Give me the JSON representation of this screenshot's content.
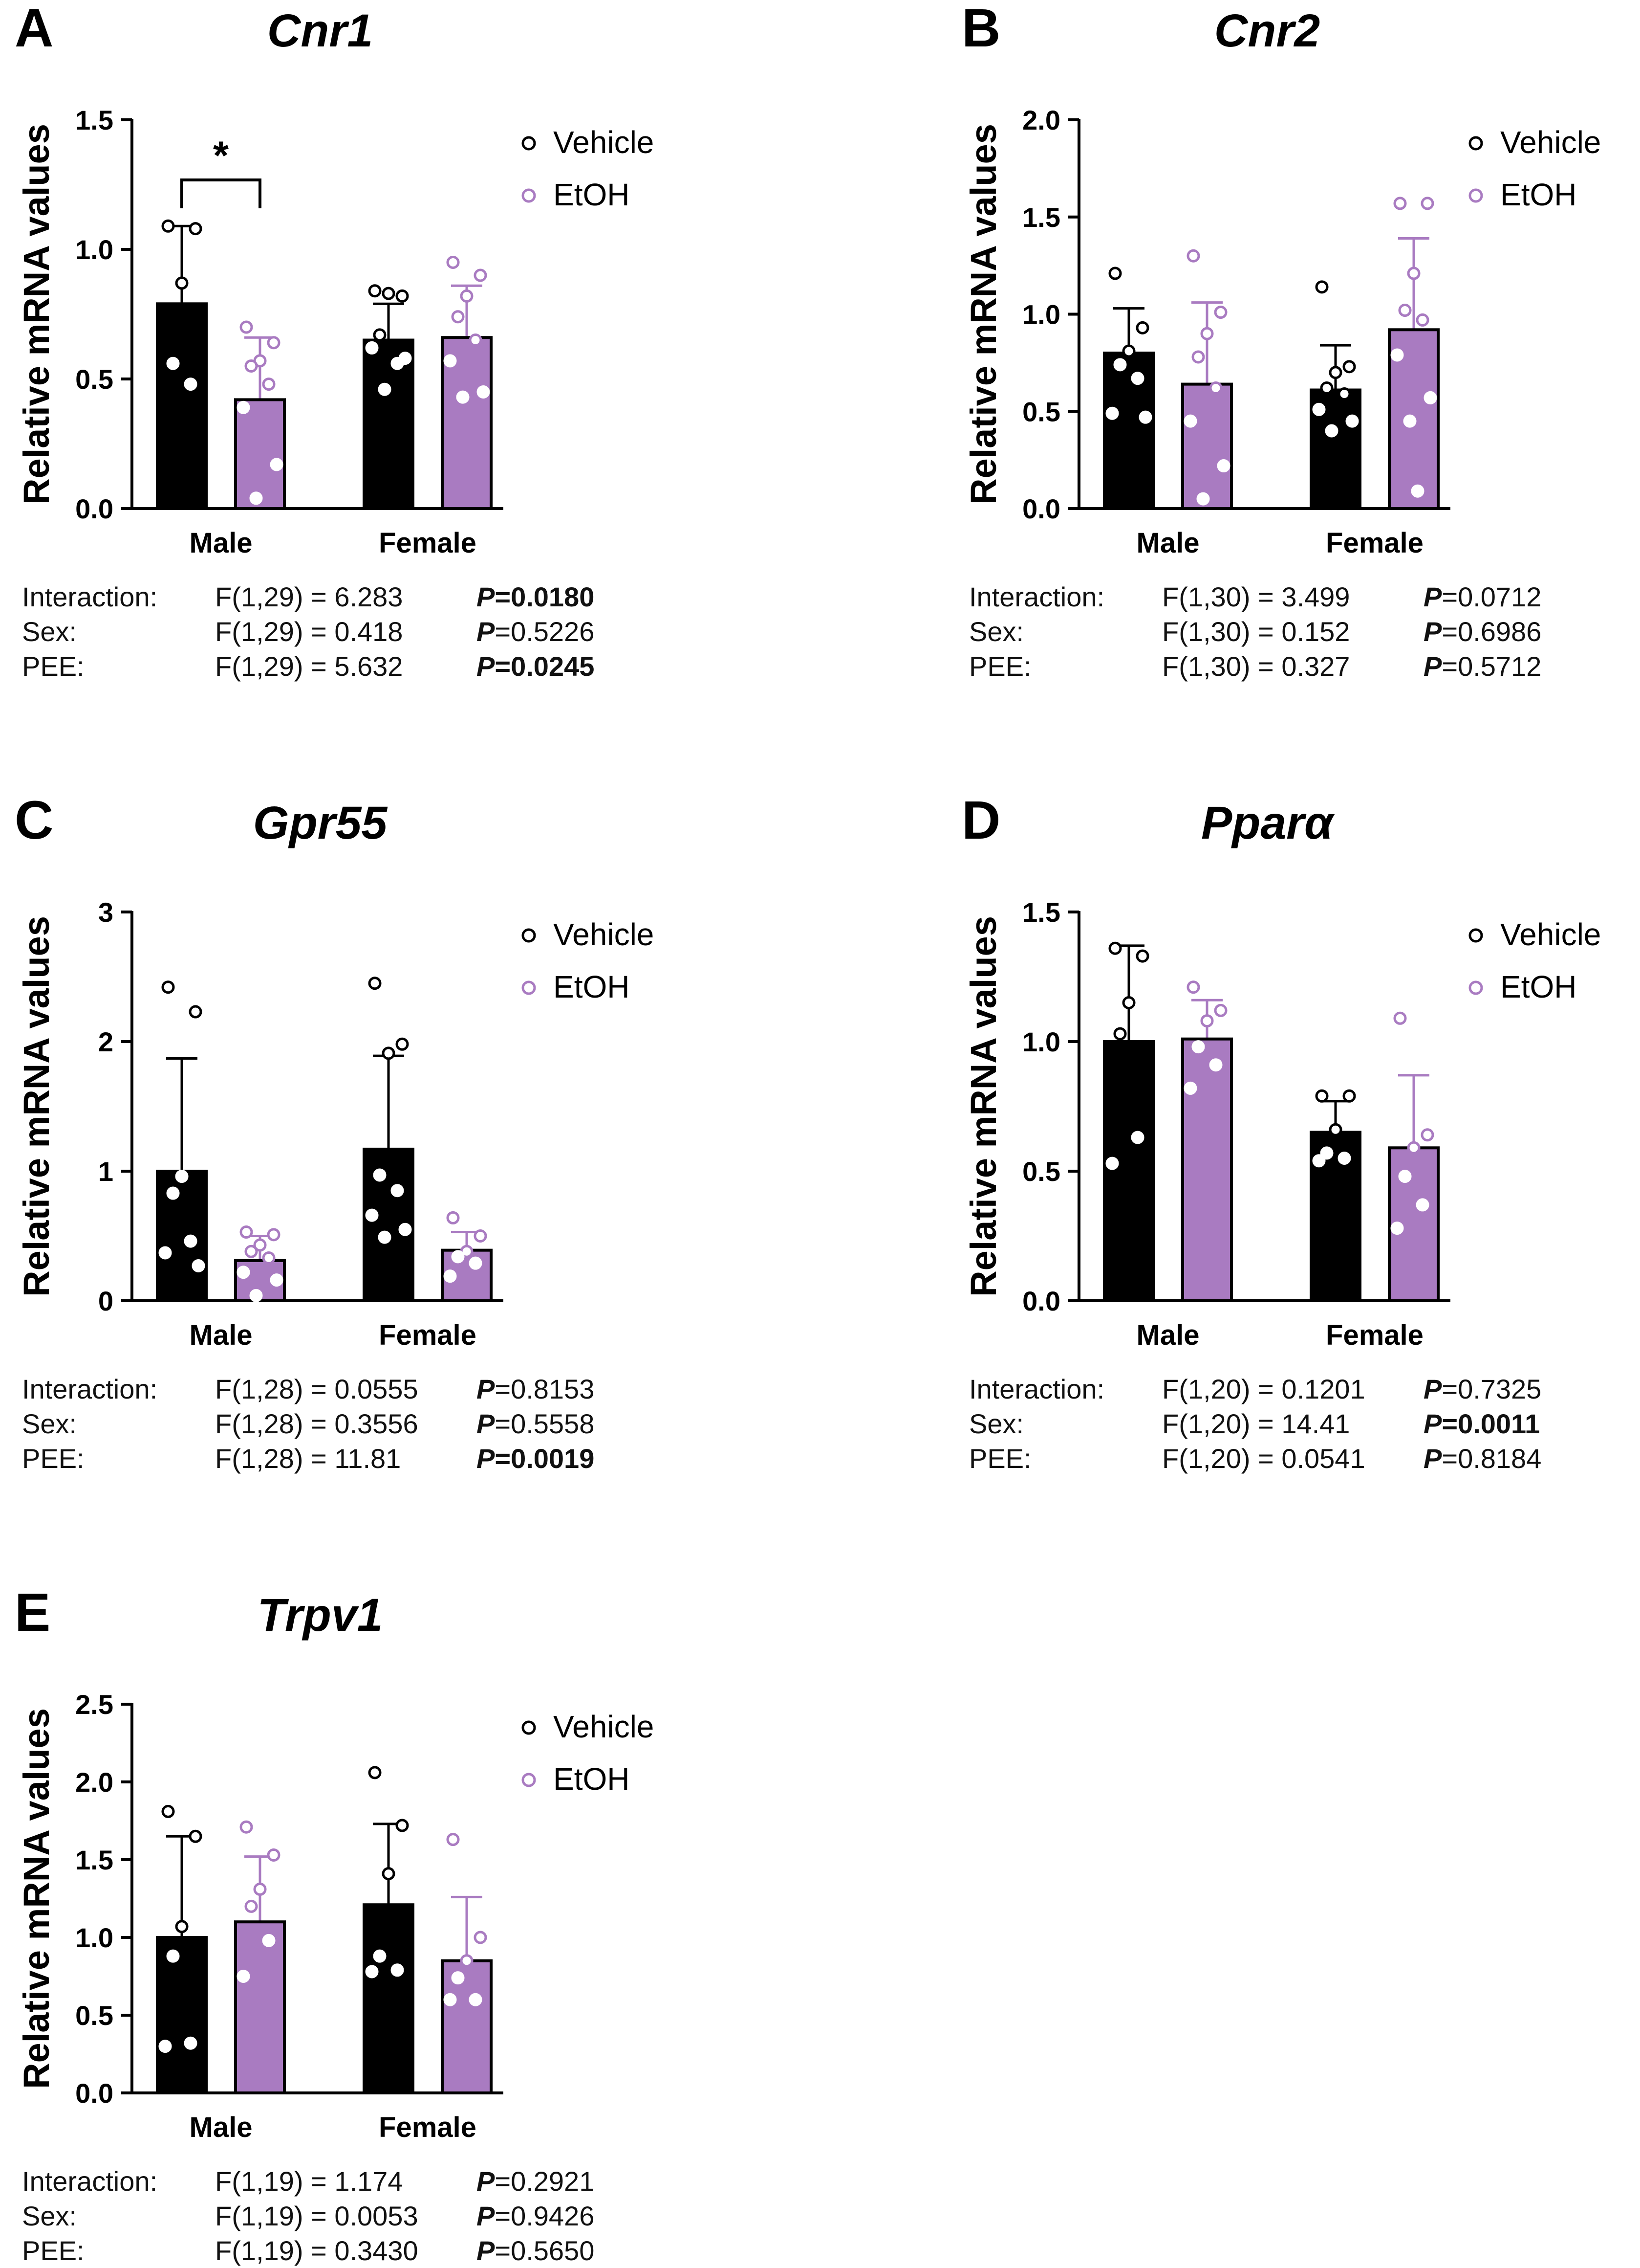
{
  "colors": {
    "vehicle": "#000000",
    "etoh": "#a97bc1",
    "etoh_point": "#a97bc1"
  },
  "y_axis_label": "Relative mRNA values",
  "legend": {
    "vehicle": "Vehicle",
    "etoh": "EtOH"
  },
  "chart_data": [
    {
      "panel": "A",
      "type": "bar",
      "title": "Cnr1",
      "ylabel": "Relative mRNA values",
      "ylim": [
        0,
        1.5
      ],
      "yticks": [
        "0.0",
        "0.5",
        "1.0",
        "1.5"
      ],
      "categories": [
        "Male",
        "Female"
      ],
      "legend": [
        "Vehicle",
        "EtOH"
      ],
      "series": [
        {
          "name": "Vehicle",
          "values": [
            0.79,
            0.65
          ],
          "sd": [
            0.3,
            0.14
          ],
          "points": [
            [
              1.09,
              1.08,
              0.87,
              0.56,
              0.48
            ],
            [
              0.84,
              0.82,
              0.83,
              0.67,
              0.56,
              0.62,
              0.58,
              0.46
            ]
          ]
        },
        {
          "name": "EtOH",
          "values": [
            0.42,
            0.66
          ],
          "sd": [
            0.24,
            0.2
          ],
          "points": [
            [
              0.7,
              0.64,
              0.57,
              0.55,
              0.48,
              0.39,
              0.17,
              0.04
            ],
            [
              0.95,
              0.9,
              0.82,
              0.74,
              0.65,
              0.57,
              0.45,
              0.43
            ]
          ]
        }
      ],
      "significance": {
        "label": "*",
        "between": [
          "Male Vehicle",
          "Male EtOH"
        ]
      },
      "stats": [
        {
          "label": "Interaction:",
          "f": "F(1,29) = 6.283",
          "p_value": "=0.0180",
          "sig": true
        },
        {
          "label": "Sex:",
          "f": "F(1,29) = 0.418",
          "p_value": "=0.5226",
          "sig": false
        },
        {
          "label": "PEE:",
          "f": "F(1,29) = 5.632",
          "p_value": "=0.0245",
          "sig": true
        }
      ]
    },
    {
      "panel": "B",
      "type": "bar",
      "title": "Cnr2",
      "ylabel": "Relative mRNA values",
      "ylim": [
        0,
        2.0
      ],
      "yticks": [
        "0.0",
        "0.5",
        "1.0",
        "1.5",
        "2.0"
      ],
      "categories": [
        "Male",
        "Female"
      ],
      "legend": [
        "Vehicle",
        "EtOH"
      ],
      "series": [
        {
          "name": "Vehicle",
          "values": [
            0.8,
            0.61
          ],
          "sd": [
            0.23,
            0.23
          ],
          "points": [
            [
              1.21,
              0.93,
              0.81,
              0.74,
              0.67,
              0.49,
              0.47
            ],
            [
              1.14,
              0.73,
              0.7,
              0.62,
              0.59,
              0.51,
              0.45,
              0.4
            ]
          ]
        },
        {
          "name": "EtOH",
          "values": [
            0.64,
            0.92
          ],
          "sd": [
            0.42,
            0.47
          ],
          "points": [
            [
              1.3,
              1.01,
              0.9,
              0.78,
              0.62,
              0.45,
              0.22,
              0.05
            ],
            [
              1.57,
              1.57,
              1.21,
              1.02,
              0.97,
              0.79,
              0.57,
              0.45,
              0.09
            ]
          ]
        }
      ],
      "stats": [
        {
          "label": "Interaction:",
          "f": "F(1,30) = 3.499",
          "p_value": "=0.0712",
          "sig": false
        },
        {
          "label": "Sex:",
          "f": "F(1,30) = 0.152",
          "p_value": "=0.6986",
          "sig": false
        },
        {
          "label": "PEE:",
          "f": "F(1,30) = 0.327",
          "p_value": "=0.5712",
          "sig": false
        }
      ]
    },
    {
      "panel": "C",
      "type": "bar",
      "title": "Gpr55",
      "ylabel": "Relative mRNA values",
      "ylim": [
        0,
        3
      ],
      "yticks": [
        "0",
        "1",
        "2",
        "3"
      ],
      "categories": [
        "Male",
        "Female"
      ],
      "legend": [
        "Vehicle",
        "EtOH"
      ],
      "series": [
        {
          "name": "Vehicle",
          "values": [
            1.0,
            1.17
          ],
          "sd": [
            0.87,
            0.72
          ],
          "points": [
            [
              2.42,
              2.23,
              0.96,
              0.83,
              0.46,
              0.37,
              0.27
            ],
            [
              2.45,
              1.98,
              1.91,
              0.97,
              0.85,
              0.66,
              0.55,
              0.49
            ]
          ]
        },
        {
          "name": "EtOH",
          "values": [
            0.31,
            0.39
          ],
          "sd": [
            0.19,
            0.14
          ],
          "points": [
            [
              0.53,
              0.51,
              0.43,
              0.38,
              0.33,
              0.22,
              0.16,
              0.04
            ],
            [
              0.64,
              0.5,
              0.38,
              0.34,
              0.29,
              0.19
            ]
          ]
        }
      ],
      "stats": [
        {
          "label": "Interaction:",
          "f": "F(1,28) = 0.0555",
          "p_value": "=0.8153",
          "sig": false
        },
        {
          "label": "Sex:",
          "f": "F(1,28) = 0.3556",
          "p_value": "=0.5558",
          "sig": false
        },
        {
          "label": "PEE:",
          "f": "F(1,28) = 11.81",
          "p_value": "=0.0019",
          "sig": true
        }
      ]
    },
    {
      "panel": "D",
      "type": "bar",
      "title": "Pparα",
      "ylabel": "Relative mRNA values",
      "ylim": [
        0,
        1.5
      ],
      "yticks": [
        "0.0",
        "0.5",
        "1.0",
        "1.5"
      ],
      "categories": [
        "Male",
        "Female"
      ],
      "legend": [
        "Vehicle",
        "EtOH"
      ],
      "series": [
        {
          "name": "Vehicle",
          "values": [
            1.0,
            0.65
          ],
          "sd": [
            0.37,
            0.12
          ],
          "points": [
            [
              1.36,
              1.33,
              1.15,
              1.03,
              0.63,
              0.53
            ],
            [
              0.79,
              0.79,
              0.66,
              0.57,
              0.55,
              0.54
            ]
          ]
        },
        {
          "name": "EtOH",
          "values": [
            1.01,
            0.59
          ],
          "sd": [
            0.15,
            0.28
          ],
          "points": [
            [
              1.21,
              1.12,
              1.08,
              0.98,
              0.91,
              0.82
            ],
            [
              1.09,
              0.64,
              0.59,
              0.48,
              0.37,
              0.28
            ]
          ]
        }
      ],
      "stats": [
        {
          "label": "Interaction:",
          "f": "F(1,20) = 0.1201",
          "p_value": "=0.7325",
          "sig": false
        },
        {
          "label": "Sex:",
          "f": "F(1,20) = 14.41",
          "p_value": "=0.0011",
          "sig": true
        },
        {
          "label": "PEE:",
          "f": "F(1,20) = 0.0541",
          "p_value": "=0.8184",
          "sig": false
        }
      ]
    },
    {
      "panel": "E",
      "type": "bar",
      "title": "Trpv1",
      "ylabel": "Relative mRNA values",
      "ylim": [
        0,
        2.5
      ],
      "yticks": [
        "0.0",
        "0.5",
        "1.0",
        "1.5",
        "2.0",
        "2.5"
      ],
      "categories": [
        "Male",
        "Female"
      ],
      "legend": [
        "Vehicle",
        "EtOH"
      ],
      "series": [
        {
          "name": "Vehicle",
          "values": [
            1.0,
            1.21
          ],
          "sd": [
            0.65,
            0.52
          ],
          "points": [
            [
              1.81,
              1.65,
              1.07,
              0.88,
              0.32,
              0.3
            ],
            [
              2.06,
              1.72,
              1.41,
              0.88,
              0.79,
              0.78
            ]
          ]
        },
        {
          "name": "EtOH",
          "values": [
            1.1,
            0.85
          ],
          "sd": [
            0.42,
            0.41
          ],
          "points": [
            [
              1.71,
              1.53,
              1.31,
              1.2,
              0.98,
              0.75
            ],
            [
              1.63,
              1.0,
              0.85,
              0.74,
              0.6,
              0.6
            ]
          ]
        }
      ],
      "stats": [
        {
          "label": "Interaction:",
          "f": "F(1,19) = 1.174",
          "p_value": "=0.2921",
          "sig": false
        },
        {
          "label": "Sex:",
          "f": "F(1,19) = 0.0053",
          "p_value": "=0.9426",
          "sig": false
        },
        {
          "label": "PEE:",
          "f": "F(1,19) = 0.3430",
          "p_value": "=0.5650",
          "sig": false
        }
      ]
    }
  ]
}
